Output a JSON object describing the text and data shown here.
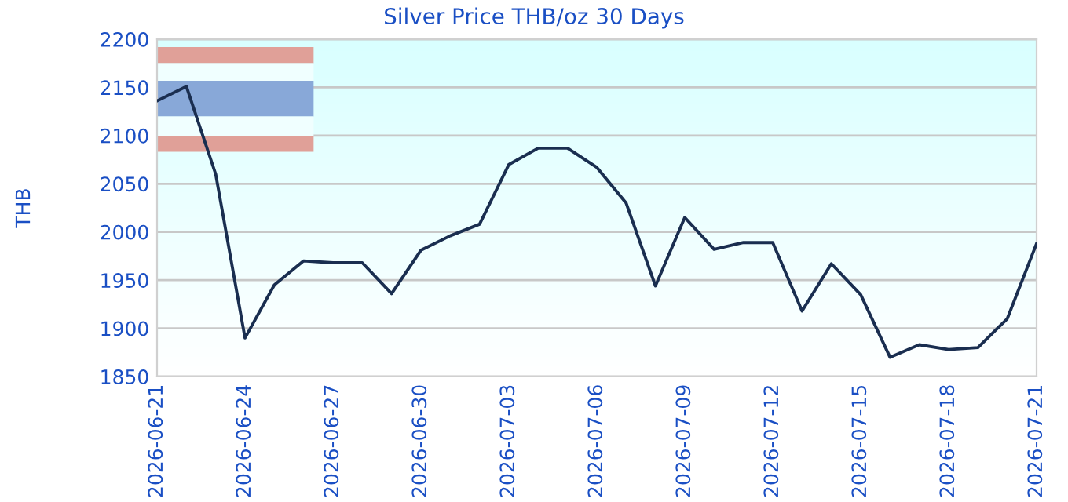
{
  "chart_data": {
    "type": "line",
    "title": "Silver Price THB/oz 30 Days",
    "ylabel": "THB",
    "x": [
      "2026-06-21",
      "2026-06-22",
      "2026-06-23",
      "2026-06-24",
      "2026-06-25",
      "2026-06-26",
      "2026-06-27",
      "2026-06-28",
      "2026-06-29",
      "2026-06-30",
      "2026-07-01",
      "2026-07-02",
      "2026-07-03",
      "2026-07-04",
      "2026-07-05",
      "2026-07-06",
      "2026-07-07",
      "2026-07-08",
      "2026-07-09",
      "2026-07-10",
      "2026-07-11",
      "2026-07-12",
      "2026-07-13",
      "2026-07-14",
      "2026-07-15",
      "2026-07-16",
      "2026-07-17",
      "2026-07-18",
      "2026-07-19",
      "2026-07-20",
      "2026-07-21"
    ],
    "series": [
      {
        "color": "#1a2e50",
        "values": [
          2136,
          2151,
          2060,
          1890,
          1945,
          1970,
          1968,
          1968,
          1936,
          1981,
          1996,
          2008,
          2070,
          2087,
          2087,
          2067,
          2030,
          1944,
          2015,
          1982,
          1989,
          1989,
          1918,
          1967,
          1935,
          1870,
          1883,
          1878,
          1880,
          1910,
          1988
        ]
      }
    ],
    "xlim": [
      "2026-06-21",
      "2026-07-21"
    ],
    "xticks": [
      "2026-06-21",
      "2026-06-24",
      "2026-06-27",
      "2026-06-30",
      "2026-07-03",
      "2026-07-06",
      "2026-07-09",
      "2026-07-12",
      "2026-07-15",
      "2026-07-18",
      "2026-07-21"
    ],
    "ylim": [
      1850,
      2200
    ],
    "yticks": [
      1850,
      1900,
      1950,
      2000,
      2050,
      2100,
      2150,
      2200
    ],
    "grid": "y",
    "line_style": "solid",
    "marker": "none"
  }
}
